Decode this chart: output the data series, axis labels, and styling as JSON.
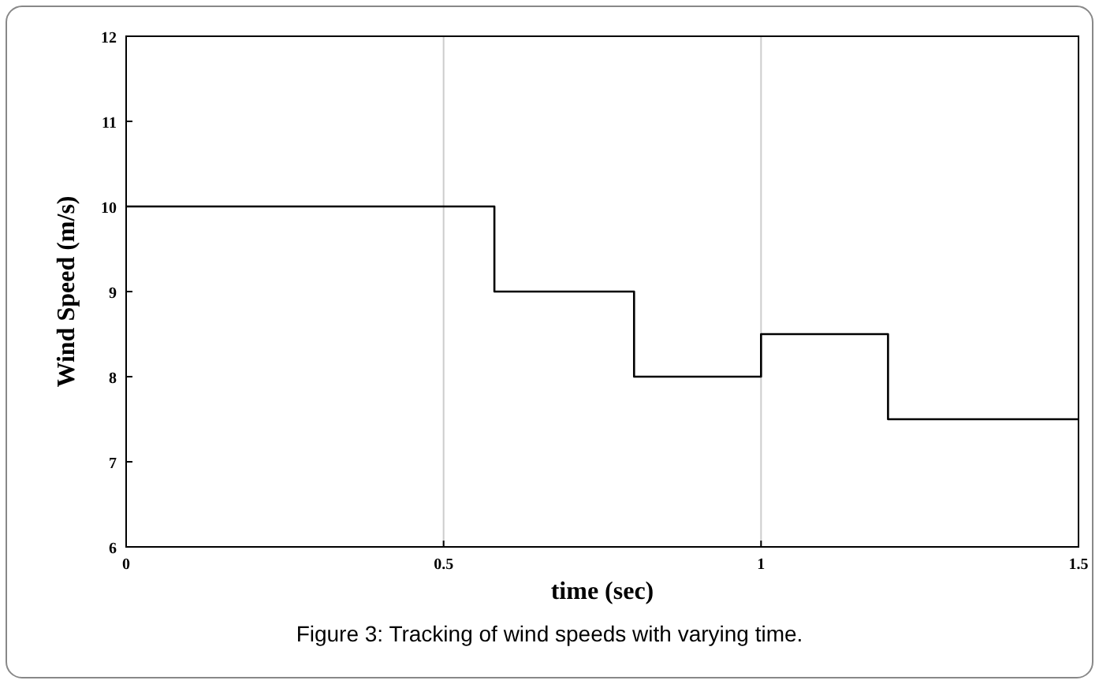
{
  "chart_data": {
    "type": "step",
    "xlabel": "time (sec)",
    "ylabel": "Wind Speed (m/s)",
    "x": [
      0,
      0.58,
      0.8,
      1,
      1.2,
      1.5
    ],
    "values": [
      10,
      9,
      8,
      8.5,
      7.5,
      7.5
    ],
    "color": "#000000",
    "xlim": [
      0,
      1.5
    ],
    "xticks": [
      0,
      0.5,
      1,
      1.5
    ],
    "ylim": [
      6,
      12
    ],
    "yticks": [
      6,
      7,
      8,
      9,
      10,
      11,
      12
    ],
    "grid": "x",
    "annotations": [
      "Figure 3: Tracking of wind speeds with varying time."
    ]
  }
}
